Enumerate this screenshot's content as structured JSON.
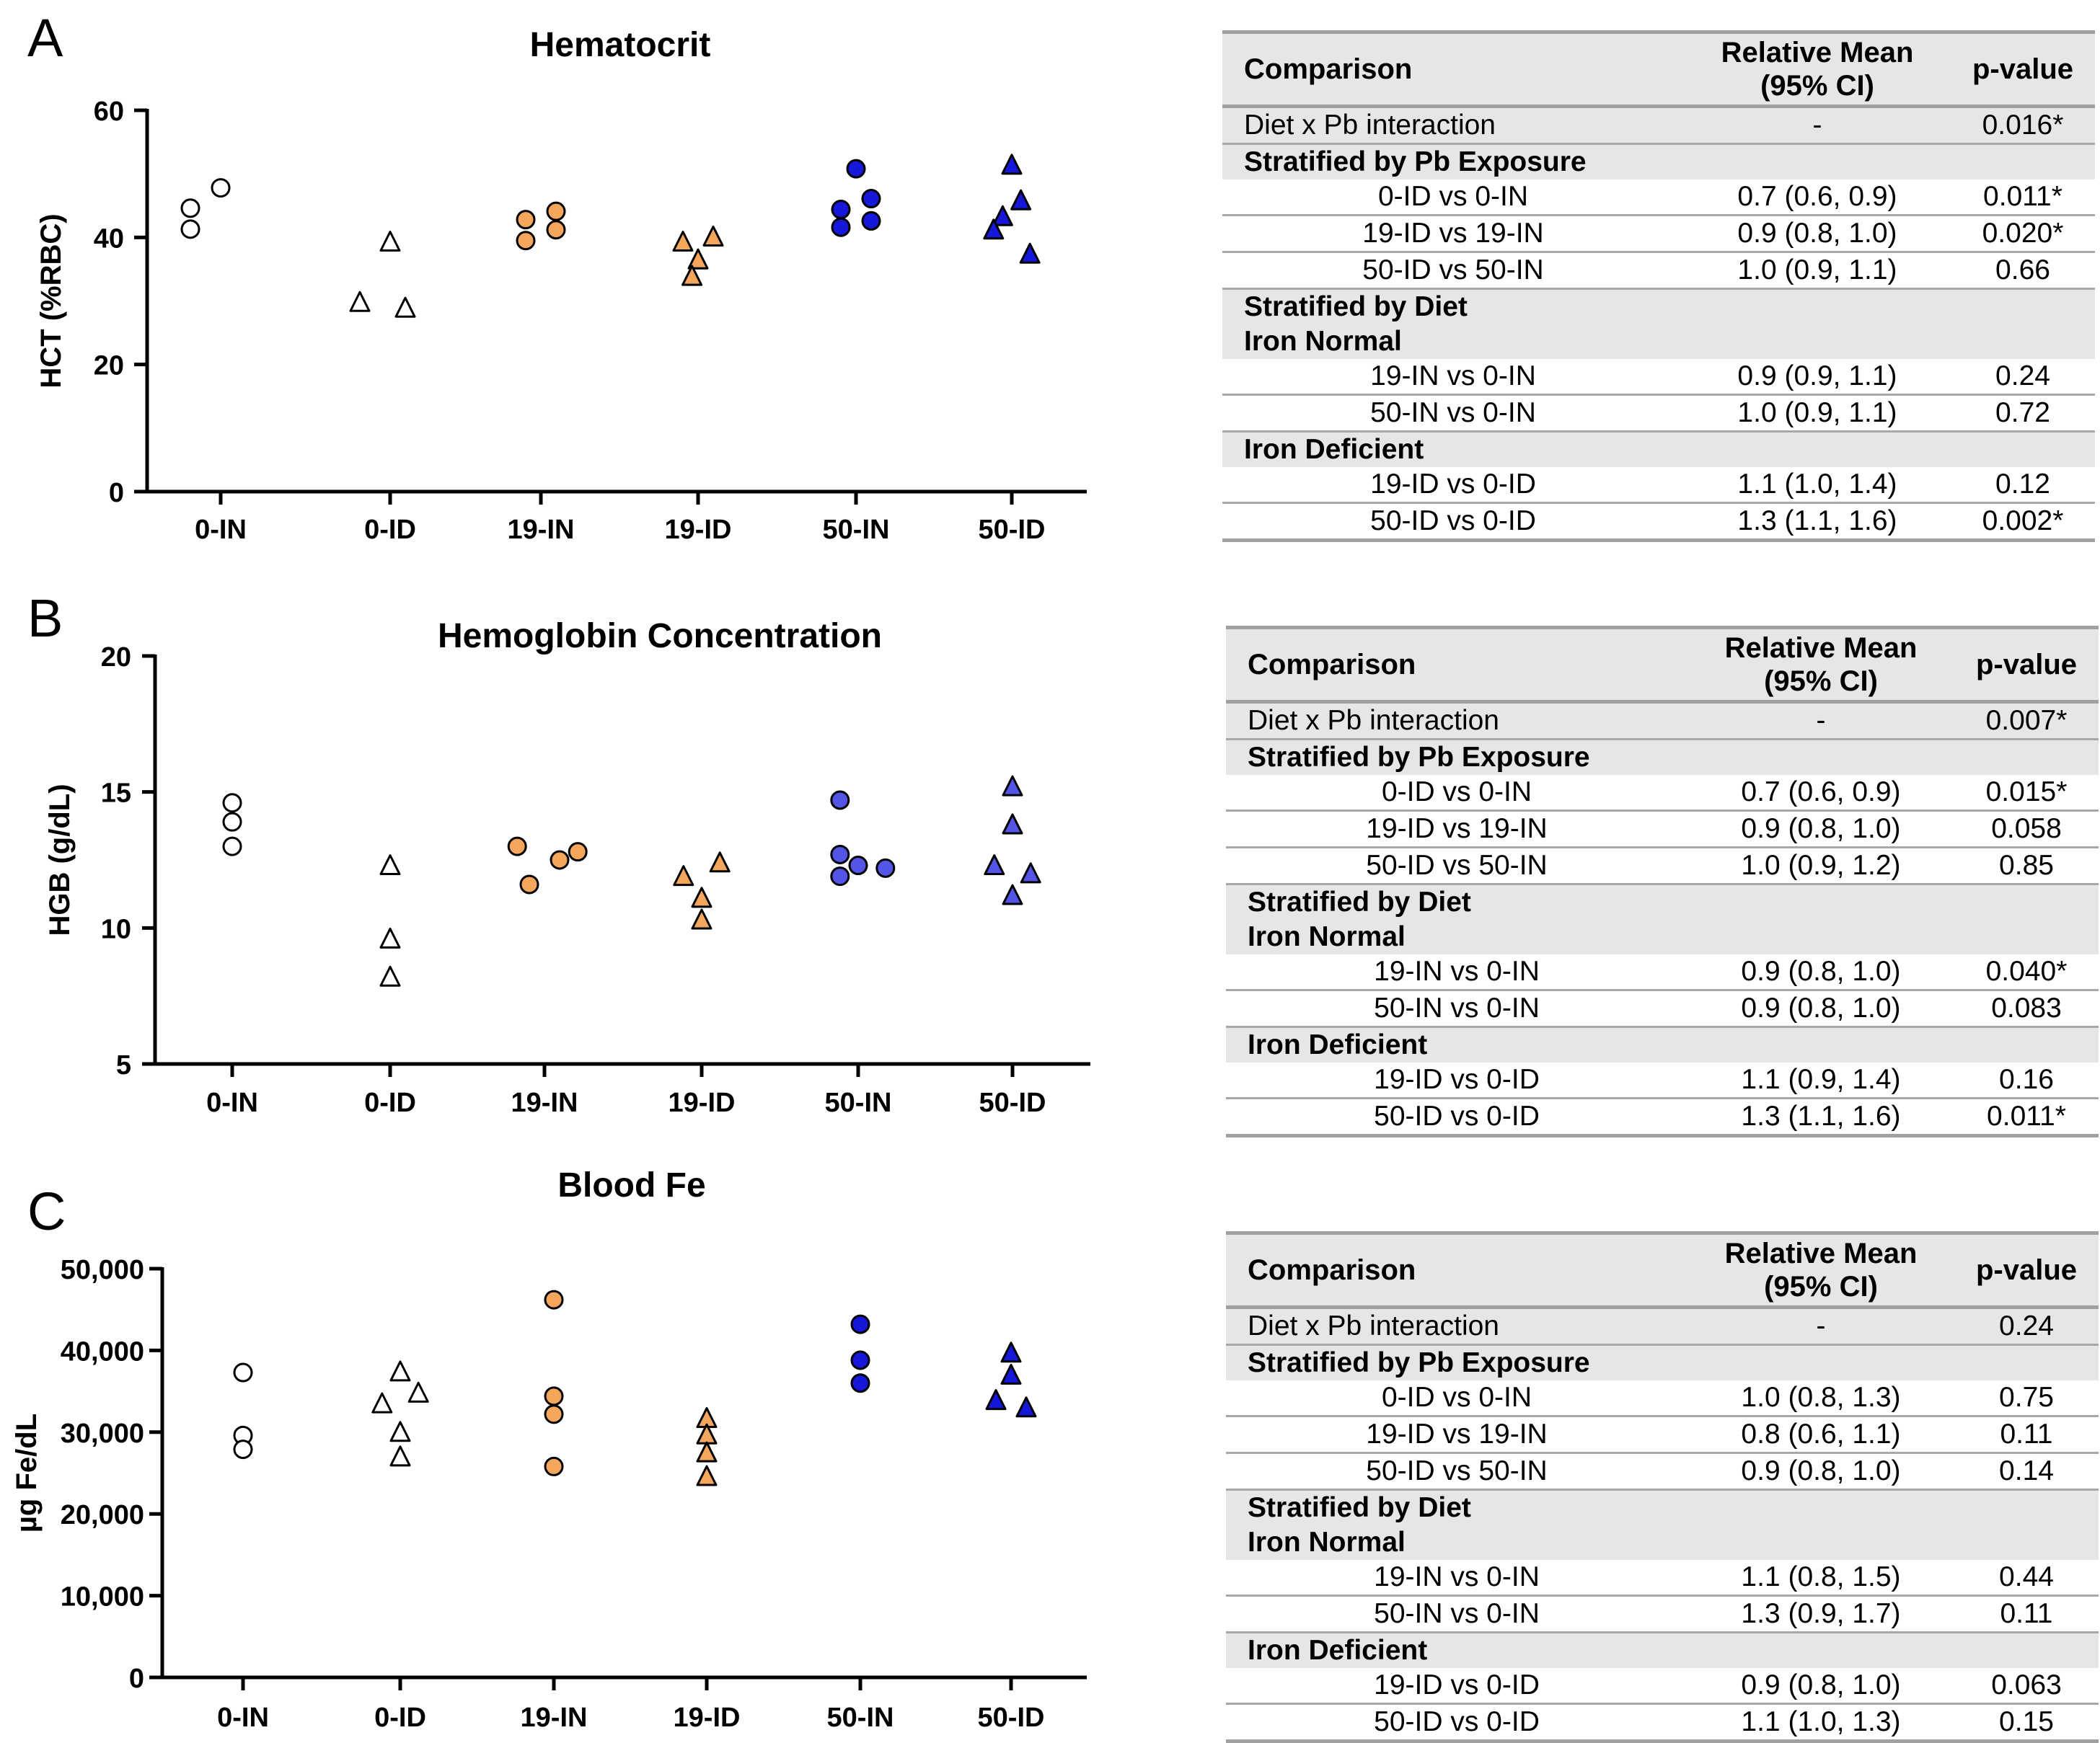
{
  "panels": [
    {
      "letter": "A"
    },
    {
      "letter": "B"
    },
    {
      "letter": "C"
    }
  ],
  "colors": {
    "white": "#ffffff",
    "orange": "#f4a65c",
    "blue_dark": "#1717d9",
    "blue_light": "#5454e6",
    "stroke": "#000000"
  },
  "chart_data": [
    {
      "type": "scatter",
      "title": "Hematocrit",
      "ylabel": "HCT (%RBC)",
      "xlabel": "",
      "ylim": [
        0,
        60
      ],
      "yticks": [
        "0",
        "20",
        "40",
        "60"
      ],
      "yticks_values": [
        0,
        20,
        40,
        60
      ],
      "categories": [
        "0-IN",
        "0-ID",
        "19-IN",
        "19-ID",
        "50-IN",
        "50-ID"
      ],
      "series": [
        {
          "name": "0-IN",
          "marker": "circle",
          "color": "white",
          "values": [
            47.8,
            44.6,
            41.3
          ]
        },
        {
          "name": "0-ID",
          "marker": "triangle",
          "color": "white",
          "values": [
            39.3,
            29.8,
            28.9
          ]
        },
        {
          "name": "19-IN",
          "marker": "circle",
          "color": "orange",
          "values": [
            42.8,
            44.1,
            39.5,
            41.2
          ]
        },
        {
          "name": "19-ID",
          "marker": "triangle",
          "color": "orange",
          "values": [
            39.3,
            40.1,
            36.5,
            33.9
          ]
        },
        {
          "name": "50-IN",
          "marker": "circle",
          "color": "blue_dark",
          "values": [
            50.8,
            44.4,
            46.1,
            41.6,
            42.6
          ]
        },
        {
          "name": "50-ID",
          "marker": "triangle",
          "color": "blue_dark",
          "values": [
            51.4,
            43.3,
            45.8,
            41.2,
            37.4
          ]
        }
      ]
    },
    {
      "type": "scatter",
      "title": "Hemoglobin Concentration",
      "ylabel": "HGB (g/dL)",
      "xlabel": "",
      "ylim": [
        5,
        20
      ],
      "yticks": [
        "5",
        "10",
        "15",
        "20"
      ],
      "yticks_values": [
        5,
        10,
        15,
        20
      ],
      "categories": [
        "0-IN",
        "0-ID",
        "19-IN",
        "19-ID",
        "50-IN",
        "50-ID"
      ],
      "series": [
        {
          "name": "0-IN",
          "marker": "circle",
          "color": "white",
          "values": [
            14.6,
            13.9,
            13.0
          ]
        },
        {
          "name": "0-ID",
          "marker": "triangle",
          "color": "white",
          "values": [
            12.3,
            9.6,
            8.2
          ]
        },
        {
          "name": "19-IN",
          "marker": "circle",
          "color": "orange",
          "values": [
            13.0,
            12.5,
            12.8,
            11.6
          ]
        },
        {
          "name": "19-ID",
          "marker": "triangle",
          "color": "orange",
          "values": [
            11.9,
            12.4,
            11.1,
            10.3
          ]
        },
        {
          "name": "50-IN",
          "marker": "circle",
          "color": "blue_light",
          "values": [
            14.7,
            12.7,
            12.3,
            12.2,
            11.9
          ]
        },
        {
          "name": "50-ID",
          "marker": "triangle",
          "color": "blue_light",
          "values": [
            15.2,
            13.8,
            12.3,
            12.0,
            11.2
          ]
        }
      ]
    },
    {
      "type": "scatter",
      "title": "Blood Fe",
      "ylabel": "µg Fe/dL",
      "xlabel": "",
      "ylim": [
        0,
        50000
      ],
      "yticks": [
        "0",
        "10,000",
        "20,000",
        "30,000",
        "40,000",
        "50,000"
      ],
      "yticks_values": [
        0,
        10000,
        20000,
        30000,
        40000,
        50000
      ],
      "categories": [
        "0-IN",
        "0-ID",
        "19-IN",
        "19-ID",
        "50-IN",
        "50-ID"
      ],
      "series": [
        {
          "name": "0-IN",
          "marker": "circle",
          "color": "white",
          "values": [
            37300,
            29600,
            27900
          ]
        },
        {
          "name": "0-ID",
          "marker": "triangle",
          "color": "white",
          "values": [
            37400,
            34800,
            33500,
            30000,
            27000
          ]
        },
        {
          "name": "19-IN",
          "marker": "circle",
          "color": "orange",
          "values": [
            46200,
            34400,
            32200,
            25800
          ]
        },
        {
          "name": "19-ID",
          "marker": "triangle",
          "color": "orange",
          "values": [
            31700,
            29700,
            27500,
            24600
          ]
        },
        {
          "name": "50-IN",
          "marker": "circle",
          "color": "blue_dark",
          "values": [
            43200,
            38800,
            36000
          ]
        },
        {
          "name": "50-ID",
          "marker": "triangle",
          "color": "blue_dark",
          "values": [
            39700,
            37000,
            33900,
            33000
          ]
        }
      ]
    }
  ],
  "tables": [
    {
      "header": {
        "comparison": "Comparison",
        "mean_line1": "Relative Mean",
        "mean_line2": "(95% CI)",
        "pvalue": "p-value"
      },
      "rows": [
        {
          "type": "shaded",
          "comparison": "Diet x Pb interaction",
          "mean": "-",
          "p": "0.016*"
        },
        {
          "type": "section",
          "comparison": "Stratified by Pb Exposure",
          "mean": "",
          "p": ""
        },
        {
          "type": "data",
          "comparison": "0-ID vs 0-IN",
          "mean": "0.7 (0.6, 0.9)",
          "p": "0.011*"
        },
        {
          "type": "data",
          "comparison": "19-ID vs 19-IN",
          "mean": "0.9 (0.8, 1.0)",
          "p": "0.020*"
        },
        {
          "type": "data",
          "comparison": "50-ID vs 50-IN",
          "mean": "1.0 (0.9, 1.1)",
          "p": "0.66"
        },
        {
          "type": "section",
          "comparison": "Stratified by Diet",
          "mean": "",
          "p": ""
        },
        {
          "type": "section",
          "comparison": "Iron Normal",
          "mean": "",
          "p": ""
        },
        {
          "type": "data",
          "comparison": "19-IN vs 0-IN",
          "mean": "0.9 (0.9, 1.1)",
          "p": "0.24"
        },
        {
          "type": "data",
          "comparison": "50-IN vs 0-IN",
          "mean": "1.0 (0.9, 1.1)",
          "p": "0.72"
        },
        {
          "type": "section",
          "comparison": "Iron Deficient",
          "mean": "",
          "p": ""
        },
        {
          "type": "data",
          "comparison": "19-ID vs 0-ID",
          "mean": "1.1 (1.0, 1.4)",
          "p": "0.12"
        },
        {
          "type": "last",
          "comparison": "50-ID vs 0-ID",
          "mean": "1.3 (1.1, 1.6)",
          "p": "0.002*"
        }
      ]
    },
    {
      "header": {
        "comparison": "Comparison",
        "mean_line1": "Relative Mean",
        "mean_line2": "(95% CI)",
        "pvalue": "p-value"
      },
      "rows": [
        {
          "type": "shaded",
          "comparison": "Diet x Pb interaction",
          "mean": "-",
          "p": "0.007*"
        },
        {
          "type": "section",
          "comparison": "Stratified by Pb Exposure",
          "mean": "",
          "p": ""
        },
        {
          "type": "data",
          "comparison": "0-ID vs 0-IN",
          "mean": "0.7 (0.6, 0.9)",
          "p": "0.015*"
        },
        {
          "type": "data",
          "comparison": "19-ID vs 19-IN",
          "mean": "0.9 (0.8, 1.0)",
          "p": "0.058"
        },
        {
          "type": "data",
          "comparison": "50-ID vs 50-IN",
          "mean": "1.0 (0.9, 1.2)",
          "p": "0.85"
        },
        {
          "type": "section",
          "comparison": "Stratified by Diet",
          "mean": "",
          "p": ""
        },
        {
          "type": "section",
          "comparison": "Iron Normal",
          "mean": "",
          "p": ""
        },
        {
          "type": "data",
          "comparison": "19-IN vs 0-IN",
          "mean": "0.9 (0.8, 1.0)",
          "p": "0.040*"
        },
        {
          "type": "data",
          "comparison": "50-IN vs 0-IN",
          "mean": "0.9 (0.8, 1.0)",
          "p": "0.083"
        },
        {
          "type": "section",
          "comparison": "Iron Deficient",
          "mean": "",
          "p": ""
        },
        {
          "type": "data",
          "comparison": "19-ID vs 0-ID",
          "mean": "1.1 (0.9, 1.4)",
          "p": "0.16"
        },
        {
          "type": "last",
          "comparison": "50-ID vs 0-ID",
          "mean": "1.3 (1.1, 1.6)",
          "p": "0.011*"
        }
      ]
    },
    {
      "header": {
        "comparison": "Comparison",
        "mean_line1": "Relative Mean",
        "mean_line2": "(95% CI)",
        "pvalue": "p-value"
      },
      "rows": [
        {
          "type": "shaded",
          "comparison": "Diet x Pb interaction",
          "mean": "-",
          "p": "0.24"
        },
        {
          "type": "section",
          "comparison": "Stratified by Pb Exposure",
          "mean": "",
          "p": ""
        },
        {
          "type": "data",
          "comparison": "0-ID vs 0-IN",
          "mean": "1.0 (0.8, 1.3)",
          "p": "0.75"
        },
        {
          "type": "data",
          "comparison": "19-ID vs 19-IN",
          "mean": "0.8 (0.6, 1.1)",
          "p": "0.11"
        },
        {
          "type": "data",
          "comparison": "50-ID vs 50-IN",
          "mean": "0.9 (0.8, 1.0)",
          "p": "0.14"
        },
        {
          "type": "section",
          "comparison": "Stratified by Diet",
          "mean": "",
          "p": ""
        },
        {
          "type": "section",
          "comparison": "Iron Normal",
          "mean": "",
          "p": ""
        },
        {
          "type": "data",
          "comparison": "19-IN vs 0-IN",
          "mean": "1.1 (0.8, 1.5)",
          "p": "0.44"
        },
        {
          "type": "data",
          "comparison": "50-IN vs 0-IN",
          "mean": "1.3 (0.9, 1.7)",
          "p": "0.11"
        },
        {
          "type": "section",
          "comparison": "Iron Deficient",
          "mean": "",
          "p": ""
        },
        {
          "type": "data",
          "comparison": "19-ID vs 0-ID",
          "mean": "0.9 (0.8, 1.0)",
          "p": "0.063"
        },
        {
          "type": "last",
          "comparison": "50-ID vs 0-ID",
          "mean": "1.1 (1.0, 1.3)",
          "p": "0.15"
        }
      ]
    }
  ]
}
